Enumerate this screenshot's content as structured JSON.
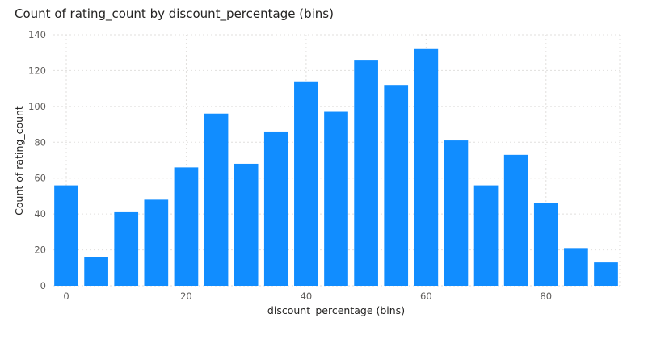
{
  "chart_data": {
    "type": "bar",
    "title": "Count of rating_count by discount_percentage (bins)",
    "xlabel": "discount_percentage (bins)",
    "ylabel": "Count of rating_count",
    "categories": [
      0,
      5,
      10,
      15,
      20,
      25,
      30,
      35,
      40,
      45,
      50,
      55,
      60,
      65,
      70,
      75,
      80,
      85,
      90
    ],
    "values": [
      56,
      16,
      41,
      48,
      66,
      96,
      68,
      86,
      114,
      97,
      126,
      112,
      132,
      81,
      56,
      73,
      46,
      21,
      13
    ],
    "ylim": [
      0,
      140
    ],
    "yticks": [
      "0",
      "20",
      "40",
      "60",
      "80",
      "100",
      "120",
      "140"
    ],
    "xticks": [
      "0",
      "20",
      "40",
      "60",
      "80"
    ],
    "grid": true,
    "bar_color": "#118DFF",
    "grid_color": "#e1dfdd"
  }
}
